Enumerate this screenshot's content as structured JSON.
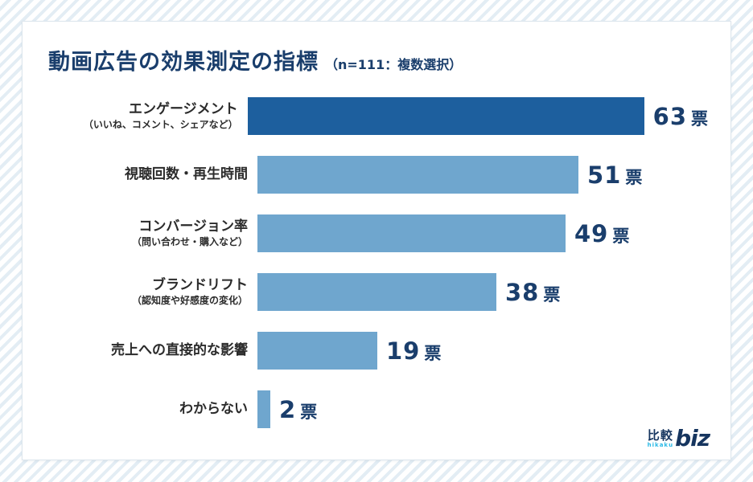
{
  "page": {
    "stripe_color": "#e3edf4",
    "card_background": "#ffffff"
  },
  "header": {
    "title": "動画広告の効果測定の指標",
    "subtitle": "（n=111：複数選択）",
    "title_color": "#1a3e6c"
  },
  "chart_data": {
    "type": "bar",
    "orientation": "horizontal",
    "title": "動画広告の効果測定の指標",
    "subtitle": "（n=111：複数選択）",
    "sample_note": "n=111",
    "selection_note": "複数選択",
    "unit": "票",
    "xlim": [
      0,
      63
    ],
    "scale_max": 63,
    "bar_colors": {
      "dark": "#1d5f9e",
      "light": "#6fa6ce"
    },
    "rows": [
      {
        "label": "エンゲージメント",
        "sublabel": "（いいね、コメント、シェアなど）",
        "value": 63,
        "color": "dark"
      },
      {
        "label": "視聴回数・再生時間",
        "sublabel": "",
        "value": 51,
        "color": "light"
      },
      {
        "label": "コンバージョン率",
        "sublabel": "（問い合わせ・購入など）",
        "value": 49,
        "color": "light"
      },
      {
        "label": "ブランドリフト",
        "sublabel": "（認知度や好感度の変化）",
        "value": 38,
        "color": "light"
      },
      {
        "label": "売上への直接的な影響",
        "sublabel": "",
        "value": 19,
        "color": "light"
      },
      {
        "label": "わからない",
        "sublabel": "",
        "value": 2,
        "color": "light"
      }
    ]
  },
  "logo": {
    "kanji": "比較",
    "romaji": "hikaku",
    "biz": "biz",
    "accent_color": "#29b9e6",
    "navy_color": "#16355f"
  }
}
